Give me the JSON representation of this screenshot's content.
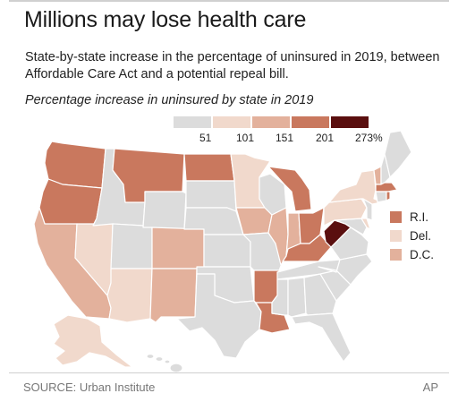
{
  "title": "Millions may lose health care",
  "subtitle": "State-by-state increase in the percentage of uninsured in 2019, between Affordable Care Act and a potential repeal bill.",
  "map_heading": "Percentage increase in uninsured by state in 2019",
  "legend": {
    "ticks": [
      "51",
      "101",
      "151",
      "201",
      "273%"
    ],
    "colors": [
      "#dcdcdc",
      "#f1d9cc",
      "#e3b19c",
      "#c9785e",
      "#5a0f0f"
    ]
  },
  "small_states": [
    {
      "label": "R.I.",
      "color": "#c9785e"
    },
    {
      "label": "Del.",
      "color": "#f1d9cc"
    },
    {
      "label": "D.C.",
      "color": "#e3b19c"
    }
  ],
  "source": "SOURCE: Urban Institute",
  "credit": "AP",
  "state_fills": {
    "WA": "#c9785e",
    "OR": "#c9785e",
    "CA": "#e3b19c",
    "NV": "#f1d9cc",
    "ID": "#dcdcdc",
    "MT": "#c9785e",
    "WY": "#dcdcdc",
    "UT": "#dcdcdc",
    "AZ": "#f1d9cc",
    "CO": "#e3b19c",
    "NM": "#e3b19c",
    "ND": "#c9785e",
    "SD": "#dcdcdc",
    "NE": "#dcdcdc",
    "KS": "#dcdcdc",
    "OK": "#dcdcdc",
    "TX": "#dcdcdc",
    "MN": "#f1d9cc",
    "IA": "#e3b19c",
    "MO": "#dcdcdc",
    "AR": "#c9785e",
    "LA": "#c9785e",
    "WI": "#dcdcdc",
    "IL": "#e3b19c",
    "MI": "#c9785e",
    "IN": "#e3b19c",
    "OH": "#c9785e",
    "KY": "#c9785e",
    "TN": "#dcdcdc",
    "MS": "#dcdcdc",
    "AL": "#dcdcdc",
    "GA": "#dcdcdc",
    "FL": "#dcdcdc",
    "SC": "#dcdcdc",
    "NC": "#dcdcdc",
    "VA": "#dcdcdc",
    "WV": "#5a0f0f",
    "MD": "#dcdcdc",
    "PA": "#f1d9cc",
    "NY": "#f1d9cc",
    "NJ": "#dcdcdc",
    "DE": "#f1d9cc",
    "CT": "#dcdcdc",
    "RI": "#c9785e",
    "MA": "#c9785e",
    "VT": "#e3b19c",
    "NH": "#dcdcdc",
    "ME": "#dcdcdc",
    "AK": "#f1d9cc",
    "HI": "#dcdcdc"
  }
}
